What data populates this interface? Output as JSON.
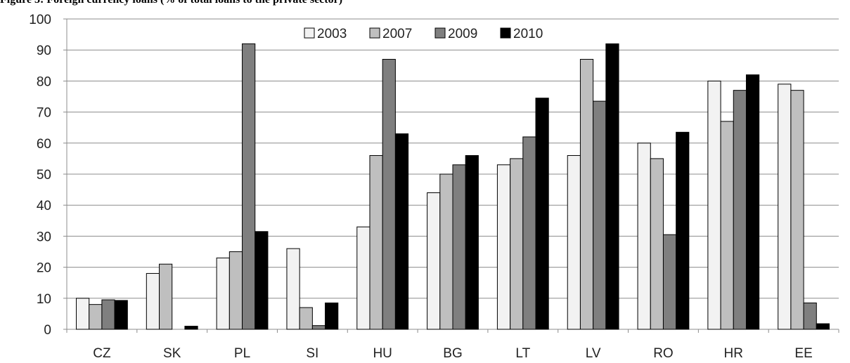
{
  "figure_title": "Figure 3: Foreign currency loans (% of total loans to the private sector)",
  "chart_data": {
    "type": "bar",
    "title": "Figure 3: Foreign currency loans (% of total loans to the private sector)",
    "xlabel": "",
    "ylabel": "",
    "ylim": [
      0,
      100
    ],
    "yticks": [
      0,
      10,
      20,
      30,
      40,
      50,
      60,
      70,
      80,
      90,
      100
    ],
    "grid": true,
    "legend_position": "top-center",
    "categories": [
      "CZ",
      "SK",
      "PL",
      "SI",
      "HU",
      "BG",
      "LT",
      "LV",
      "RO",
      "HR",
      "EE"
    ],
    "series": [
      {
        "name": "2003",
        "color": "#f2f2f2",
        "values": [
          10,
          18,
          23,
          26,
          33,
          44,
          53,
          56,
          60,
          80,
          79
        ]
      },
      {
        "name": "2007",
        "color": "#bfbfbf",
        "values": [
          8,
          21,
          25,
          7,
          56,
          50,
          55,
          87,
          55,
          67,
          77
        ]
      },
      {
        "name": "2009",
        "color": "#7f7f7f",
        "values": [
          9.5,
          0,
          92,
          1.2,
          87,
          53,
          62,
          73.5,
          30.5,
          77,
          8.5
        ]
      },
      {
        "name": "2010",
        "color": "#000000",
        "values": [
          9.3,
          1,
          31.5,
          8.5,
          63,
          56,
          74.5,
          92,
          63.5,
          82,
          1.8
        ]
      }
    ]
  }
}
